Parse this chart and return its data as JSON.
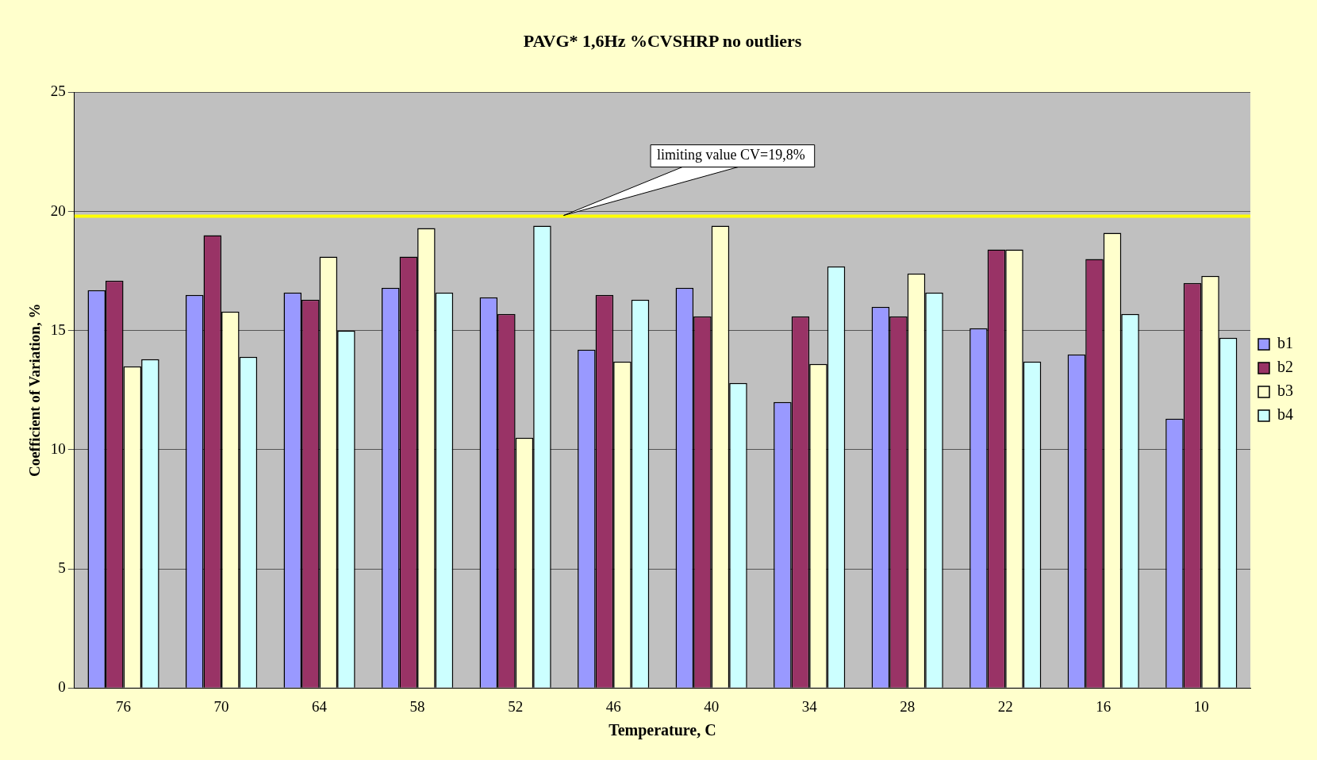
{
  "chart_data": {
    "type": "bar",
    "title": "PAVG* 1,6Hz %CVSHRP no outliers",
    "xlabel": "Temperature, C",
    "ylabel": "Coefficient of Variation, %",
    "categories": [
      "76",
      "70",
      "64",
      "58",
      "52",
      "46",
      "40",
      "34",
      "28",
      "22",
      "16",
      "10"
    ],
    "series": [
      {
        "name": "b1",
        "color": "#9999ff",
        "values": [
          16.7,
          16.5,
          16.6,
          16.8,
          16.4,
          14.2,
          16.8,
          12.0,
          16.0,
          15.1,
          14.0,
          11.3
        ]
      },
      {
        "name": "b2",
        "color": "#993366",
        "values": [
          17.1,
          19.0,
          16.3,
          18.1,
          15.7,
          16.5,
          15.6,
          15.6,
          15.6,
          18.4,
          18.0,
          17.0
        ]
      },
      {
        "name": "b3",
        "color": "#ffffcc",
        "values": [
          13.5,
          15.8,
          18.1,
          19.3,
          10.5,
          13.7,
          19.4,
          13.6,
          17.4,
          18.4,
          19.1,
          17.3
        ]
      },
      {
        "name": "b4",
        "color": "#ccffff",
        "values": [
          13.8,
          13.9,
          15.0,
          16.6,
          19.4,
          16.3,
          12.8,
          17.7,
          16.6,
          13.7,
          15.7,
          14.7
        ]
      }
    ],
    "ylim": [
      0,
      25
    ],
    "yticks": [
      0,
      5,
      10,
      15,
      20,
      25
    ],
    "grid": "y",
    "legend": "right",
    "ref_lines": [
      {
        "axis": "y",
        "value": 19.8,
        "label": "limiting value CV=19,8%",
        "color": "#ffff00"
      }
    ]
  }
}
